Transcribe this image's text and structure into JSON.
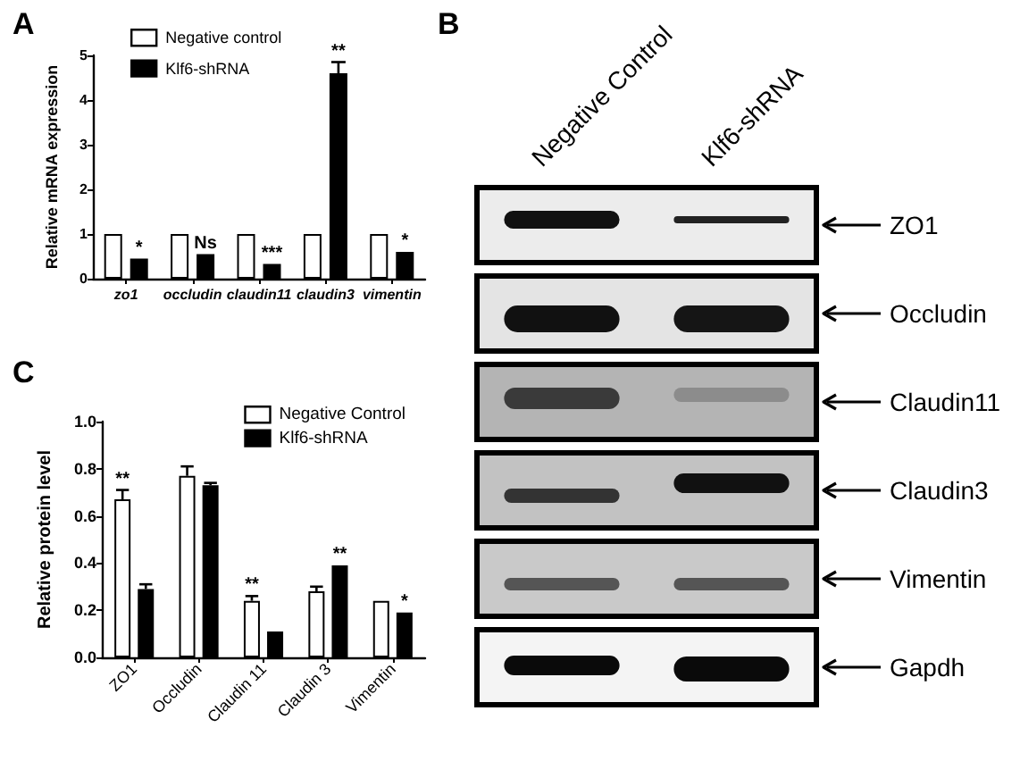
{
  "chart_data": [
    {
      "type": "bar",
      "title": "A",
      "ylabel": "Relative mRNA expression",
      "categories": [
        "zo1",
        "occludin",
        "claudin11",
        "claudin3",
        "vimentin"
      ],
      "series": [
        {
          "name": "Negative control",
          "color": "#ffffff",
          "values": [
            1,
            1,
            1,
            1,
            1
          ]
        },
        {
          "name": "Klf6-shRNA",
          "color": "#000000",
          "values": [
            0.45,
            0.55,
            0.33,
            4.6,
            0.6
          ],
          "errors": [
            null,
            null,
            null,
            [
              4.6,
              4.85
            ],
            null
          ],
          "value_labels": [
            "*",
            "Ns",
            "***",
            "**",
            "*"
          ]
        }
      ],
      "ylim": [
        0,
        5
      ],
      "yticks": [
        0,
        1,
        2,
        3,
        4,
        5
      ],
      "legend": "top left"
    },
    {
      "type": "other",
      "title": "B",
      "categories": [
        "Negative Control",
        "Klf6-shRNA"
      ],
      "annotations": [
        "ZO1",
        "Occludin",
        "Claudin11",
        "Claudin3",
        "Vimentin",
        "Gapdh"
      ]
    },
    {
      "type": "bar",
      "title": "C",
      "ylabel": "Relative protein level",
      "categories": [
        "ZO1",
        "Occludin",
        "Claudin 11",
        "Claudin 3",
        "Vimentin"
      ],
      "series": [
        {
          "name": "Negative Control",
          "color": "#ffffff",
          "values": [
            0.67,
            0.77,
            0.24,
            0.28,
            0.24
          ],
          "errors": [
            [
              0.67,
              0.71
            ],
            [
              0.77,
              0.81
            ],
            [
              0.24,
              0.26
            ],
            [
              0.28,
              0.3
            ],
            null
          ],
          "value_labels": [
            "**",
            null,
            "**",
            null,
            null
          ]
        },
        {
          "name": "Klf6-shRNA",
          "color": "#000000",
          "values": [
            0.29,
            0.73,
            0.11,
            0.39,
            0.19
          ],
          "errors": [
            [
              0.29,
              0.31
            ],
            [
              0.73,
              0.74
            ],
            null,
            null,
            null
          ],
          "value_labels": [
            null,
            null,
            null,
            "**",
            "*"
          ]
        }
      ],
      "ylim": [
        0,
        1
      ],
      "yticks": [
        {
          "value": 0,
          "label": "0.0"
        },
        0.2,
        0.4,
        0.6,
        0.8,
        {
          "value": 1,
          "label": "1.0"
        }
      ],
      "legend": "top right"
    }
  ]
}
